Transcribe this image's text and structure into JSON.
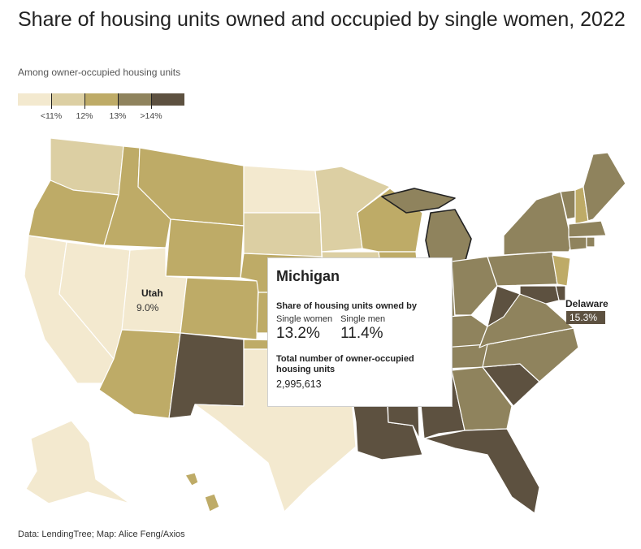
{
  "title": "Share of housing units owned and occupied by single women, 2022",
  "subtitle": "Among owner-occupied housing units",
  "legend": {
    "colors": [
      "#f3e9cf",
      "#dccfa3",
      "#beab67",
      "#8f835d",
      "#5d5140"
    ],
    "ticks": [
      "<11%",
      "12%",
      "13%",
      ">14%"
    ]
  },
  "labels": {
    "utah": {
      "name": "Utah",
      "value": "9.0%"
    },
    "delaware": {
      "name": "Delaware",
      "value": "15.3%"
    }
  },
  "tooltip": {
    "state": "Michigan",
    "share_label": "Share of housing units owned by",
    "women_label": "Single women",
    "women_value": "13.2%",
    "men_label": "Single men",
    "men_value": "11.4%",
    "total_label": "Total number of owner-occupied housing units",
    "total_value": "2,995,613"
  },
  "footer": "Data: LendingTree; Map: Alice Feng/Axios"
}
